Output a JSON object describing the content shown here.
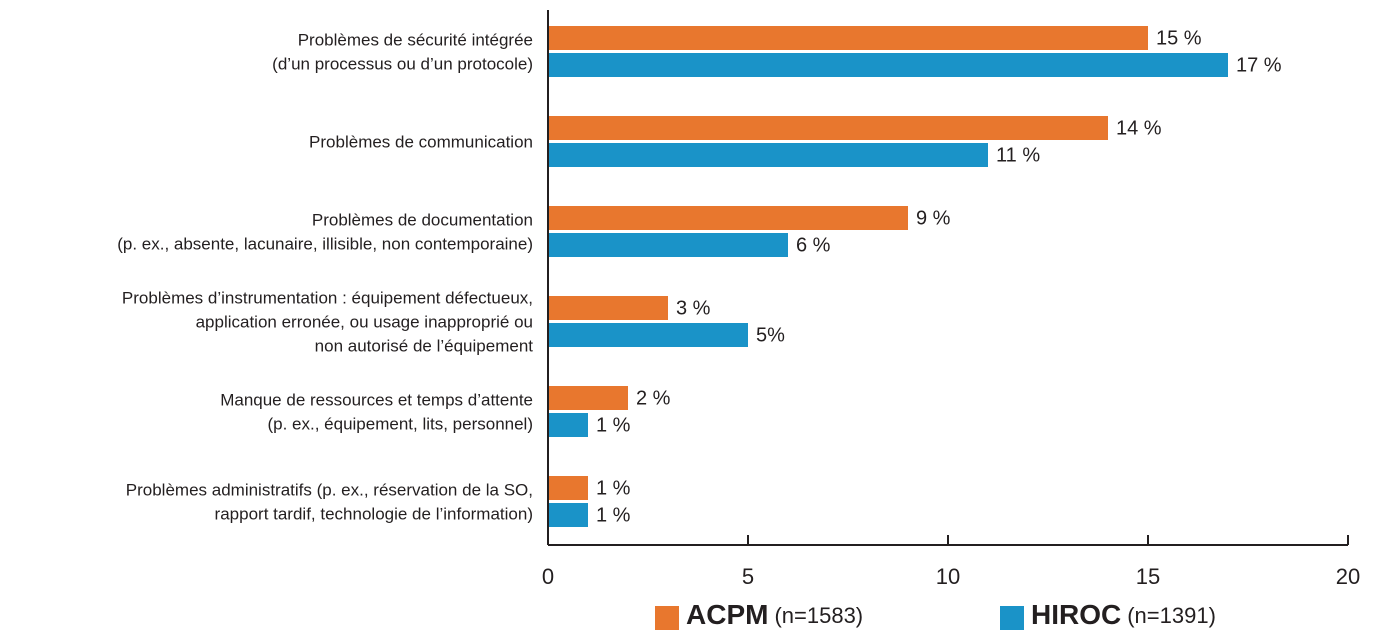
{
  "chart_data": {
    "type": "bar",
    "orientation": "horizontal",
    "categories": [
      [
        "Problèmes de sécurité intégrée",
        "(d’un processus ou d’un protocole)"
      ],
      [
        "Problèmes de communication"
      ],
      [
        "Problèmes de documentation",
        "(p. ex., absente, lacunaire, illisible, non contemporaine)"
      ],
      [
        "Problèmes d’instrumentation : équipement défectueux,",
        "application erronée, ou usage inapproprié ou",
        "non autorisé de l’équipement"
      ],
      [
        "Manque de ressources et temps d’attente",
        "(p. ex., équipement, lits, personnel)"
      ],
      [
        "Problèmes administratifs (p. ex., réservation de la SO,",
        "rapport tardif, technologie de l’information)"
      ]
    ],
    "series": [
      {
        "name": "ACPM",
        "n_label": "(n=1583)",
        "color": "#e8772e",
        "values": [
          15,
          14,
          9,
          3,
          2,
          1
        ],
        "value_labels": [
          "15 %",
          "14 %",
          "9 %",
          "3 %",
          "2 %",
          "1 %"
        ]
      },
      {
        "name": "HIROC",
        "n_label": "(n=1391)",
        "color": "#1a93c8",
        "values": [
          17,
          11,
          6,
          5,
          1,
          1
        ],
        "value_labels": [
          "17 %",
          "11 %",
          "6 %",
          "5%",
          "1 %",
          "1 %"
        ]
      }
    ],
    "xlim": [
      0,
      20
    ],
    "xticks": [
      0,
      5,
      10,
      15,
      20
    ],
    "legend": "bottom"
  }
}
